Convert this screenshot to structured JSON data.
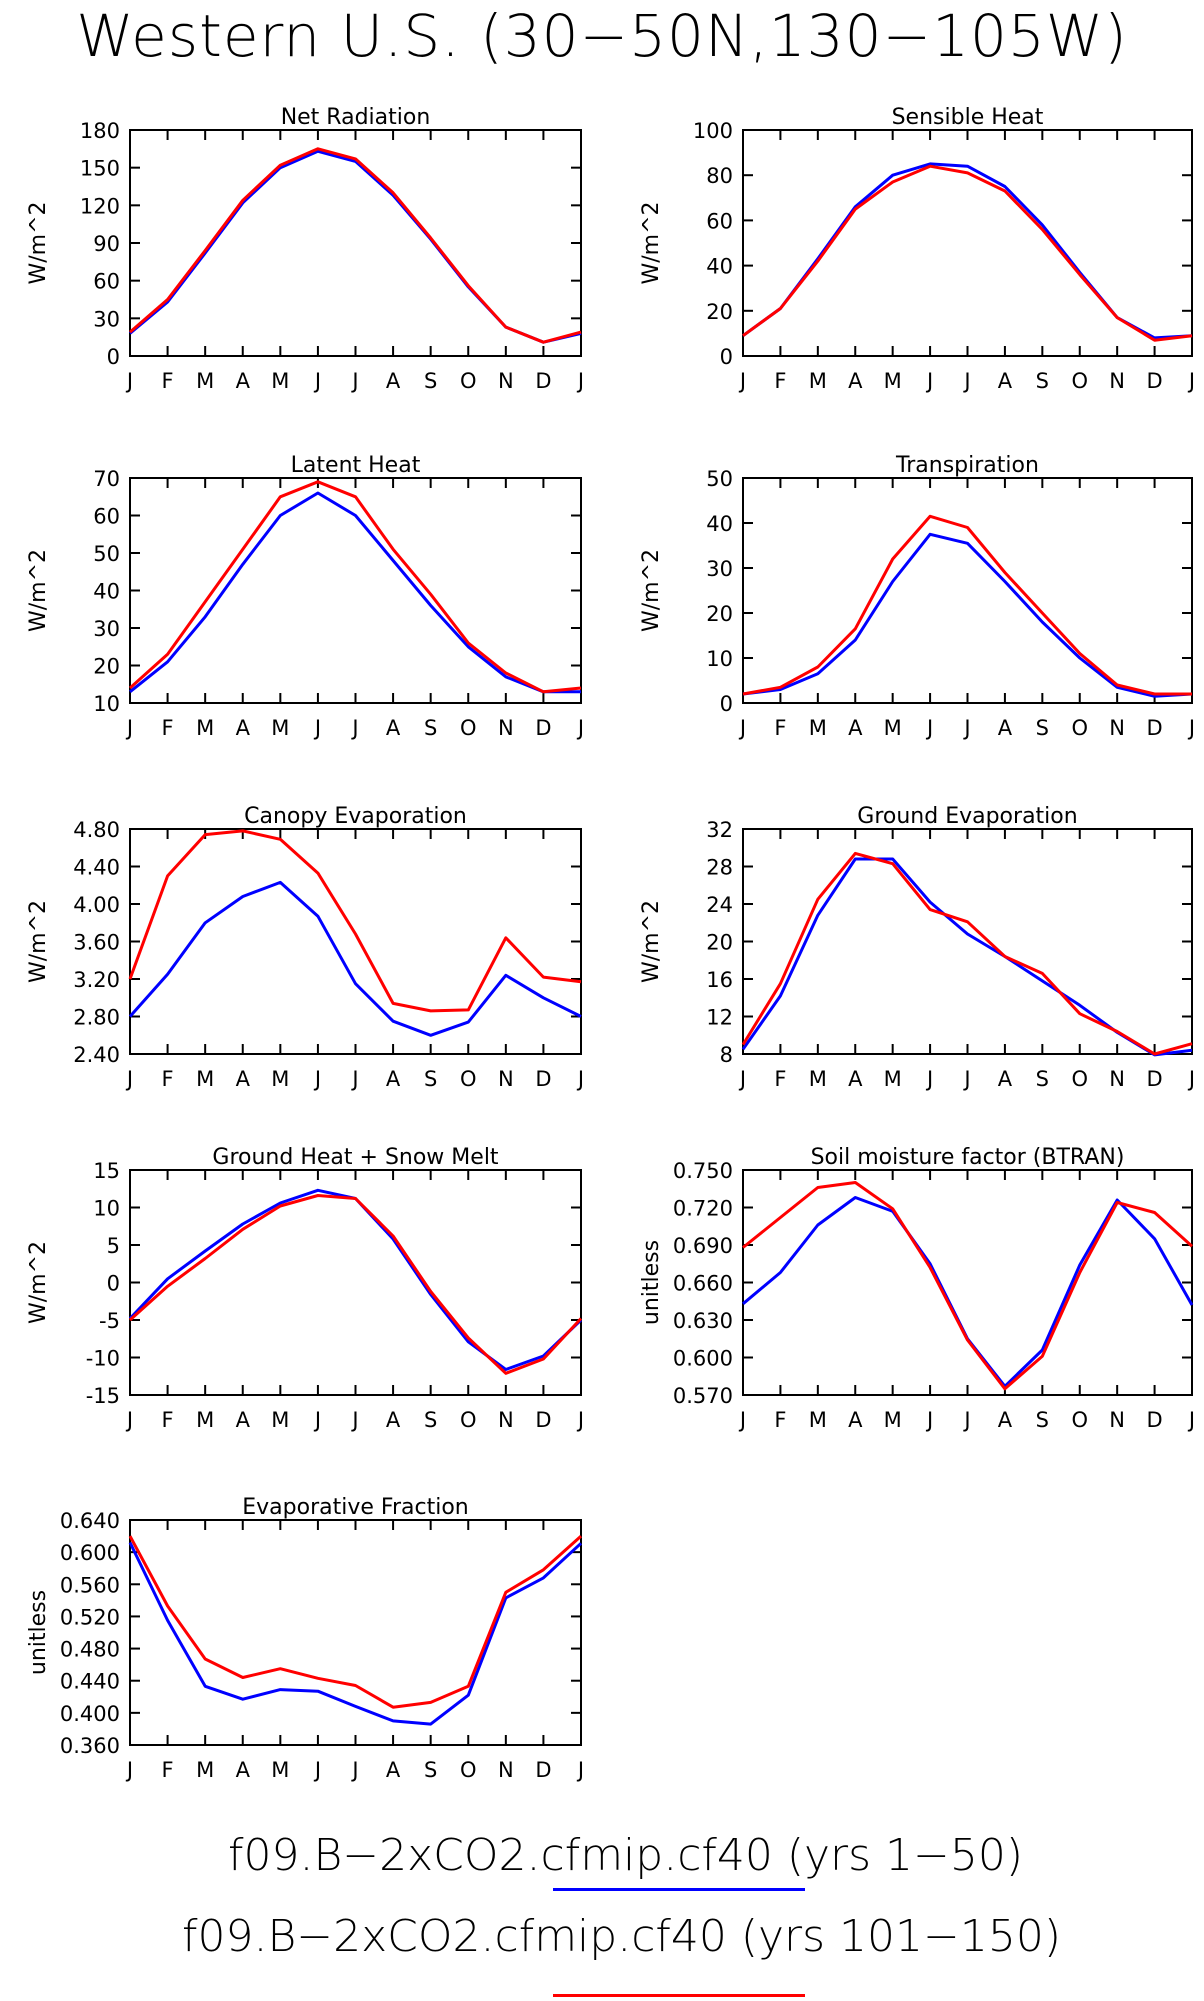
{
  "page": {
    "title": "Western U.S. (30−50N,130−105W)"
  },
  "legend": [
    {
      "label": "f09.B−2xCO2.cfmip.cf40 (yrs 1−50)",
      "color": "#0000ff"
    },
    {
      "label": "f09.B−2xCO2.cfmip.cf40 (yrs 101−150)",
      "color": "#ff0000"
    }
  ],
  "chart_data": [
    {
      "type": "line",
      "title": "Net Radiation",
      "ylabel": "W/m^2",
      "categories": [
        "J",
        "F",
        "M",
        "A",
        "M",
        "J",
        "J",
        "A",
        "S",
        "O",
        "N",
        "D",
        "J"
      ],
      "ylim": [
        0,
        180
      ],
      "yticks": [
        "0",
        "30",
        "60",
        "90",
        "120",
        "150",
        "180"
      ],
      "series": [
        {
          "color": "#0000ff",
          "values": [
            18,
            43,
            82,
            122,
            150,
            163,
            155,
            128,
            93,
            55,
            23,
            11,
            18
          ]
        },
        {
          "color": "#ff0000",
          "values": [
            19,
            45,
            84,
            124,
            152,
            165,
            157,
            130,
            94,
            56,
            23,
            11,
            19
          ]
        }
      ]
    },
    {
      "type": "line",
      "title": "Sensible Heat",
      "ylabel": "W/m^2",
      "categories": [
        "J",
        "F",
        "M",
        "A",
        "M",
        "J",
        "J",
        "A",
        "S",
        "O",
        "N",
        "D",
        "J"
      ],
      "ylim": [
        0,
        100
      ],
      "yticks": [
        "0",
        "20",
        "40",
        "60",
        "80",
        "100"
      ],
      "series": [
        {
          "color": "#0000ff",
          "values": [
            9,
            21,
            43,
            66,
            80,
            85,
            84,
            75,
            58,
            37,
            17,
            8,
            9
          ]
        },
        {
          "color": "#ff0000",
          "values": [
            9,
            21,
            42,
            65,
            77,
            84,
            81,
            73,
            56,
            36,
            17,
            7,
            9
          ]
        }
      ]
    },
    {
      "type": "line",
      "title": "Latent Heat",
      "ylabel": "W/m^2",
      "categories": [
        "J",
        "F",
        "M",
        "A",
        "M",
        "J",
        "J",
        "A",
        "S",
        "O",
        "N",
        "D",
        "J"
      ],
      "ylim": [
        10,
        70
      ],
      "yticks": [
        "10",
        "20",
        "30",
        "40",
        "50",
        "60",
        "70"
      ],
      "series": [
        {
          "color": "#0000ff",
          "values": [
            13,
            21,
            33,
            47,
            60,
            66,
            60,
            48,
            36,
            25,
            17,
            13,
            13
          ]
        },
        {
          "color": "#ff0000",
          "values": [
            14,
            23,
            37,
            51,
            65,
            69,
            65,
            51,
            39,
            26,
            18,
            13,
            14
          ]
        }
      ]
    },
    {
      "type": "line",
      "title": "Transpiration",
      "ylabel": "W/m^2",
      "categories": [
        "J",
        "F",
        "M",
        "A",
        "M",
        "J",
        "J",
        "A",
        "S",
        "O",
        "N",
        "D",
        "J"
      ],
      "ylim": [
        0,
        50
      ],
      "yticks": [
        "0",
        "10",
        "20",
        "30",
        "40",
        "50"
      ],
      "series": [
        {
          "color": "#0000ff",
          "values": [
            2,
            3,
            6.5,
            14,
            27,
            37.5,
            35.5,
            27,
            18,
            10,
            3.5,
            1.5,
            2
          ]
        },
        {
          "color": "#ff0000",
          "values": [
            2,
            3.5,
            8,
            16.5,
            32,
            41.5,
            39,
            29,
            20,
            11,
            4,
            2,
            2
          ]
        }
      ]
    },
    {
      "type": "line",
      "title": "Canopy Evaporation",
      "ylabel": "W/m^2",
      "categories": [
        "J",
        "F",
        "M",
        "A",
        "M",
        "J",
        "J",
        "A",
        "S",
        "O",
        "N",
        "D",
        "J"
      ],
      "ylim": [
        2.4,
        4.8
      ],
      "yticks": [
        "2.40",
        "2.80",
        "3.20",
        "3.60",
        "4.00",
        "4.40",
        "4.80"
      ],
      "series": [
        {
          "color": "#0000ff",
          "values": [
            2.8,
            3.25,
            3.8,
            4.08,
            4.23,
            3.87,
            3.15,
            2.75,
            2.6,
            2.74,
            3.24,
            3.0,
            2.8
          ]
        },
        {
          "color": "#ff0000",
          "values": [
            3.2,
            4.3,
            4.74,
            4.78,
            4.69,
            4.33,
            3.68,
            2.94,
            2.86,
            2.87,
            3.64,
            3.22,
            3.17
          ]
        }
      ]
    },
    {
      "type": "line",
      "title": "Ground Evaporation",
      "ylabel": "W/m^2",
      "categories": [
        "J",
        "F",
        "M",
        "A",
        "M",
        "J",
        "J",
        "A",
        "S",
        "O",
        "N",
        "D",
        "J"
      ],
      "ylim": [
        8,
        32
      ],
      "yticks": [
        "8",
        "12",
        "16",
        "20",
        "24",
        "28",
        "32"
      ],
      "series": [
        {
          "color": "#0000ff",
          "values": [
            8.5,
            14.2,
            22.8,
            28.8,
            28.8,
            24.2,
            20.8,
            18.4,
            15.8,
            13.2,
            10.3,
            7.9,
            8.4
          ]
        },
        {
          "color": "#ff0000",
          "values": [
            9.0,
            15.5,
            24.5,
            29.4,
            28.3,
            23.4,
            22.1,
            18.4,
            16.6,
            12.3,
            10.4,
            8.0,
            9.1
          ]
        }
      ]
    },
    {
      "type": "line",
      "title": "Ground Heat + Snow Melt",
      "ylabel": "W/m^2",
      "categories": [
        "J",
        "F",
        "M",
        "A",
        "M",
        "J",
        "J",
        "A",
        "S",
        "O",
        "N",
        "D",
        "J"
      ],
      "ylim": [
        -15,
        15
      ],
      "yticks": [
        "-15",
        "-10",
        "-5",
        "0",
        "5",
        "10",
        "15"
      ],
      "series": [
        {
          "color": "#0000ff",
          "values": [
            -4.8,
            0.5,
            4.2,
            7.8,
            10.6,
            12.3,
            11.2,
            5.8,
            -1.6,
            -7.9,
            -11.6,
            -9.8,
            -5.0
          ]
        },
        {
          "color": "#ff0000",
          "values": [
            -5.0,
            -0.5,
            3.2,
            7.1,
            10.2,
            11.6,
            11.2,
            6.2,
            -1.2,
            -7.4,
            -12.1,
            -10.2,
            -4.8
          ]
        }
      ]
    },
    {
      "type": "line",
      "title": "Soil moisture factor (BTRAN)",
      "ylabel": "unitless",
      "categories": [
        "J",
        "F",
        "M",
        "A",
        "M",
        "J",
        "J",
        "A",
        "S",
        "O",
        "N",
        "D",
        "J"
      ],
      "ylim": [
        0.57,
        0.75
      ],
      "yticks": [
        "0.570",
        "0.600",
        "0.630",
        "0.660",
        "0.690",
        "0.720",
        "0.750"
      ],
      "series": [
        {
          "color": "#0000ff",
          "values": [
            0.643,
            0.668,
            0.706,
            0.728,
            0.717,
            0.675,
            0.615,
            0.577,
            0.606,
            0.674,
            0.726,
            0.695,
            0.642
          ]
        },
        {
          "color": "#ff0000",
          "values": [
            0.688,
            0.712,
            0.736,
            0.74,
            0.719,
            0.672,
            0.614,
            0.575,
            0.601,
            0.668,
            0.724,
            0.716,
            0.689
          ]
        }
      ]
    },
    {
      "type": "line",
      "title": "Evaporative Fraction",
      "ylabel": "unitless",
      "categories": [
        "J",
        "F",
        "M",
        "A",
        "M",
        "J",
        "J",
        "A",
        "S",
        "O",
        "N",
        "D",
        "J"
      ],
      "ylim": [
        0.36,
        0.64
      ],
      "yticks": [
        "0.360",
        "0.400",
        "0.440",
        "0.480",
        "0.520",
        "0.560",
        "0.600",
        "0.640"
      ],
      "series": [
        {
          "color": "#0000ff",
          "values": [
            0.612,
            0.515,
            0.433,
            0.417,
            0.429,
            0.427,
            0.408,
            0.39,
            0.386,
            0.422,
            0.543,
            0.568,
            0.611
          ]
        },
        {
          "color": "#ff0000",
          "values": [
            0.62,
            0.533,
            0.467,
            0.444,
            0.455,
            0.443,
            0.434,
            0.407,
            0.413,
            0.433,
            0.55,
            0.578,
            0.62
          ]
        }
      ]
    }
  ]
}
